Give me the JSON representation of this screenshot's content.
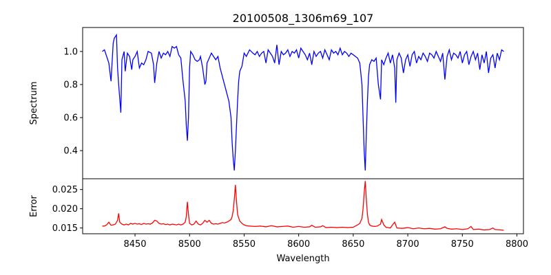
{
  "chart_data": [
    {
      "type": "line",
      "title": "20100508_1306m69_107",
      "xlabel": "",
      "ylabel": "Spectrum",
      "xlim": [
        8402,
        8806
      ],
      "ylim": [
        0.23,
        1.145
      ],
      "x_ticks": [],
      "y_ticks": [
        0.4,
        0.6,
        0.8,
        1.0
      ],
      "y_tick_labels": [
        "0.4",
        "0.6",
        "0.8",
        "1.0"
      ],
      "grid": false,
      "series": [
        {
          "color": "#0000ff",
          "x": [
            8420,
            8422,
            8424,
            8426,
            8428,
            8430,
            8431,
            8433,
            8434,
            8435,
            8437,
            8438,
            8440,
            8441,
            8443,
            8445,
            8447,
            8448,
            8450,
            8452,
            8454,
            8456,
            8458,
            8460,
            8462,
            8465,
            8467,
            8468,
            8470,
            8472,
            8474,
            8476,
            8478,
            8480,
            8482,
            8484,
            8486,
            8488,
            8490,
            8492,
            8494,
            8496,
            8497,
            8498,
            8499,
            8500,
            8501,
            8503,
            8505,
            8507,
            8509,
            8510,
            8512,
            8514,
            8515,
            8516,
            8518,
            8520,
            8522,
            8524,
            8526,
            8528,
            8530,
            8532,
            8534,
            8536,
            8538,
            8539,
            8540,
            8541,
            8542,
            8543,
            8544,
            8545,
            8546,
            8548,
            8550,
            8552,
            8555,
            8558,
            8560,
            8562,
            8564,
            8566,
            8568,
            8570,
            8572,
            8574,
            8576,
            8578,
            8580,
            8582,
            8584,
            8586,
            8588,
            8590,
            8592,
            8594,
            8596,
            8598,
            8600,
            8602,
            8604,
            8606,
            8608,
            8610,
            8612,
            8614,
            8616,
            8618,
            8620,
            8622,
            8624,
            8626,
            8628,
            8630,
            8632,
            8634,
            8636,
            8638,
            8640,
            8642,
            8644,
            8646,
            8648,
            8650,
            8652,
            8654,
            8656,
            8658,
            8659,
            8660,
            8661,
            8662,
            8663,
            8664,
            8665,
            8667,
            8669,
            8671,
            8673,
            8675,
            8676,
            8678,
            8680,
            8682,
            8684,
            8686,
            8688,
            8689,
            8690,
            8692,
            8694,
            8696,
            8698,
            8700,
            8702,
            8704,
            8706,
            8708,
            8710,
            8712,
            8714,
            8716,
            8718,
            8720,
            8722,
            8724,
            8726,
            8728,
            8730,
            8732,
            8734,
            8736,
            8738,
            8740,
            8742,
            8744,
            8746,
            8748,
            8750,
            8752,
            8754,
            8756,
            8758,
            8760,
            8762,
            8764,
            8766,
            8768,
            8770,
            8772,
            8774,
            8776,
            8778,
            8780,
            8782,
            8784,
            8786,
            8788
          ],
          "y": [
            1.0,
            1.01,
            0.97,
            0.93,
            0.82,
            1.05,
            1.08,
            1.1,
            0.9,
            0.8,
            0.63,
            0.95,
            1.0,
            0.88,
            0.99,
            0.97,
            0.89,
            0.95,
            0.97,
            1.0,
            0.9,
            0.93,
            0.92,
            0.95,
            1.0,
            0.99,
            0.92,
            0.81,
            0.93,
            1.0,
            0.96,
            0.99,
            0.98,
            1.0,
            0.97,
            1.03,
            1.02,
            1.03,
            0.98,
            0.96,
            0.82,
            0.7,
            0.55,
            0.46,
            0.6,
            0.9,
            1.0,
            0.98,
            0.95,
            0.94,
            0.95,
            0.97,
            0.9,
            0.8,
            0.82,
            0.93,
            0.96,
            0.99,
            0.97,
            0.95,
            0.97,
            0.9,
            0.85,
            0.8,
            0.75,
            0.7,
            0.6,
            0.45,
            0.35,
            0.28,
            0.4,
            0.55,
            0.7,
            0.82,
            0.88,
            0.91,
            0.99,
            0.97,
            1.01,
            0.99,
            0.98,
            1.0,
            0.97,
            0.99,
            1.0,
            0.93,
            1.01,
            0.99,
            0.97,
            0.93,
            1.04,
            0.92,
            1.0,
            0.98,
            0.99,
            1.01,
            0.97,
            1.0,
            0.99,
            1.01,
            0.96,
            1.02,
            1.0,
            0.98,
            0.95,
            0.99,
            0.92,
            1.0,
            0.97,
            0.99,
            1.0,
            0.96,
            1.01,
            0.98,
            0.95,
            1.01,
            0.99,
            1.0,
            0.98,
            1.02,
            0.98,
            1.0,
            0.99,
            0.97,
            0.99,
            0.98,
            0.97,
            0.96,
            0.93,
            0.8,
            0.6,
            0.4,
            0.28,
            0.5,
            0.7,
            0.85,
            0.92,
            0.95,
            0.94,
            0.96,
            0.8,
            0.71,
            0.95,
            0.92,
            0.96,
            0.99,
            0.93,
            0.98,
            0.9,
            0.69,
            0.95,
            0.99,
            0.96,
            0.87,
            0.95,
            0.98,
            0.91,
            0.98,
            1.0,
            0.93,
            0.97,
            0.95,
            0.99,
            0.97,
            0.94,
            0.99,
            0.98,
            0.96,
            1.0,
            0.97,
            0.94,
            0.99,
            0.83,
            0.97,
            1.01,
            0.95,
            0.99,
            0.98,
            0.96,
            1.0,
            0.93,
            0.98,
            1.0,
            0.92,
            0.97,
            1.0,
            0.95,
            0.99,
            0.89,
            0.98,
            0.93,
            1.0,
            0.87,
            0.96,
            0.98,
            0.9,
            0.99,
            0.95,
            1.01,
            1.0
          ]
        }
      ]
    },
    {
      "type": "line",
      "title": "",
      "xlabel": "Wavelength",
      "ylabel": "Error",
      "xlim": [
        8402,
        8806
      ],
      "ylim": [
        0.0135,
        0.0278
      ],
      "x_ticks": [
        8450,
        8500,
        8550,
        8600,
        8650,
        8700,
        8750,
        8800
      ],
      "x_tick_labels": [
        "8450",
        "8500",
        "8550",
        "8600",
        "8650",
        "8700",
        "8750",
        "8800"
      ],
      "y_ticks": [
        0.015,
        0.02,
        0.025
      ],
      "y_tick_labels": [
        "0.015",
        "0.020",
        "0.025"
      ],
      "grid": false,
      "series": [
        {
          "color": "#ff0000",
          "x": [
            8420,
            8422,
            8424,
            8426,
            8428,
            8430,
            8432,
            8434,
            8435,
            8436,
            8438,
            8440,
            8442,
            8444,
            8446,
            8448,
            8450,
            8452,
            8454,
            8456,
            8458,
            8460,
            8462,
            8464,
            8466,
            8468,
            8470,
            8472,
            8474,
            8476,
            8478,
            8480,
            8482,
            8484,
            8486,
            8488,
            8490,
            8492,
            8494,
            8496,
            8497,
            8498,
            8499,
            8500,
            8502,
            8504,
            8506,
            8508,
            8510,
            8512,
            8514,
            8516,
            8518,
            8520,
            8522,
            8524,
            8526,
            8528,
            8530,
            8532,
            8534,
            8536,
            8538,
            8539,
            8540,
            8541,
            8542,
            8543,
            8544,
            8546,
            8548,
            8550,
            8552,
            8555,
            8560,
            8565,
            8570,
            8575,
            8580,
            8585,
            8590,
            8595,
            8600,
            8605,
            8610,
            8612,
            8615,
            8620,
            8622,
            8625,
            8630,
            8635,
            8640,
            8645,
            8650,
            8652,
            8654,
            8656,
            8658,
            8659,
            8660,
            8661,
            8662,
            8663,
            8664,
            8665,
            8667,
            8670,
            8672,
            8675,
            8676,
            8678,
            8680,
            8684,
            8686,
            8688,
            8690,
            8695,
            8700,
            8705,
            8710,
            8715,
            8720,
            8725,
            8730,
            8734,
            8736,
            8740,
            8745,
            8750,
            8755,
            8758,
            8760,
            8765,
            8770,
            8775,
            8778,
            8780,
            8785,
            8788
          ],
          "y": [
            0.0155,
            0.0155,
            0.0158,
            0.0165,
            0.0157,
            0.0158,
            0.016,
            0.017,
            0.0188,
            0.0165,
            0.016,
            0.0158,
            0.016,
            0.0158,
            0.0162,
            0.016,
            0.0162,
            0.016,
            0.0161,
            0.0159,
            0.0162,
            0.016,
            0.0161,
            0.016,
            0.0163,
            0.017,
            0.0168,
            0.0162,
            0.016,
            0.0161,
            0.0159,
            0.016,
            0.0158,
            0.016,
            0.0159,
            0.0158,
            0.016,
            0.0158,
            0.016,
            0.0165,
            0.018,
            0.0218,
            0.0185,
            0.0162,
            0.0158,
            0.016,
            0.0168,
            0.016,
            0.0158,
            0.0162,
            0.017,
            0.0165,
            0.017,
            0.0162,
            0.016,
            0.0161,
            0.016,
            0.0162,
            0.0164,
            0.0163,
            0.0165,
            0.0168,
            0.0172,
            0.018,
            0.0195,
            0.0225,
            0.0262,
            0.022,
            0.0185,
            0.0168,
            0.0162,
            0.0158,
            0.0156,
            0.0155,
            0.0154,
            0.0155,
            0.0153,
            0.0156,
            0.0153,
            0.0154,
            0.0155,
            0.0152,
            0.0154,
            0.0152,
            0.0153,
            0.0157,
            0.0152,
            0.0153,
            0.0156,
            0.0151,
            0.0152,
            0.0151,
            0.0152,
            0.0151,
            0.0152,
            0.0155,
            0.0158,
            0.0162,
            0.0175,
            0.02,
            0.024,
            0.0272,
            0.0225,
            0.0185,
            0.0165,
            0.0158,
            0.0155,
            0.0154,
            0.0155,
            0.016,
            0.0172,
            0.0158,
            0.0152,
            0.015,
            0.0158,
            0.0165,
            0.015,
            0.0149,
            0.0151,
            0.0148,
            0.015,
            0.0148,
            0.0149,
            0.0147,
            0.0148,
            0.0153,
            0.0149,
            0.0147,
            0.0148,
            0.0146,
            0.0148,
            0.0154,
            0.0146,
            0.0147,
            0.0145,
            0.0146,
            0.015,
            0.0146,
            0.0145,
            0.0144
          ]
        }
      ]
    }
  ]
}
